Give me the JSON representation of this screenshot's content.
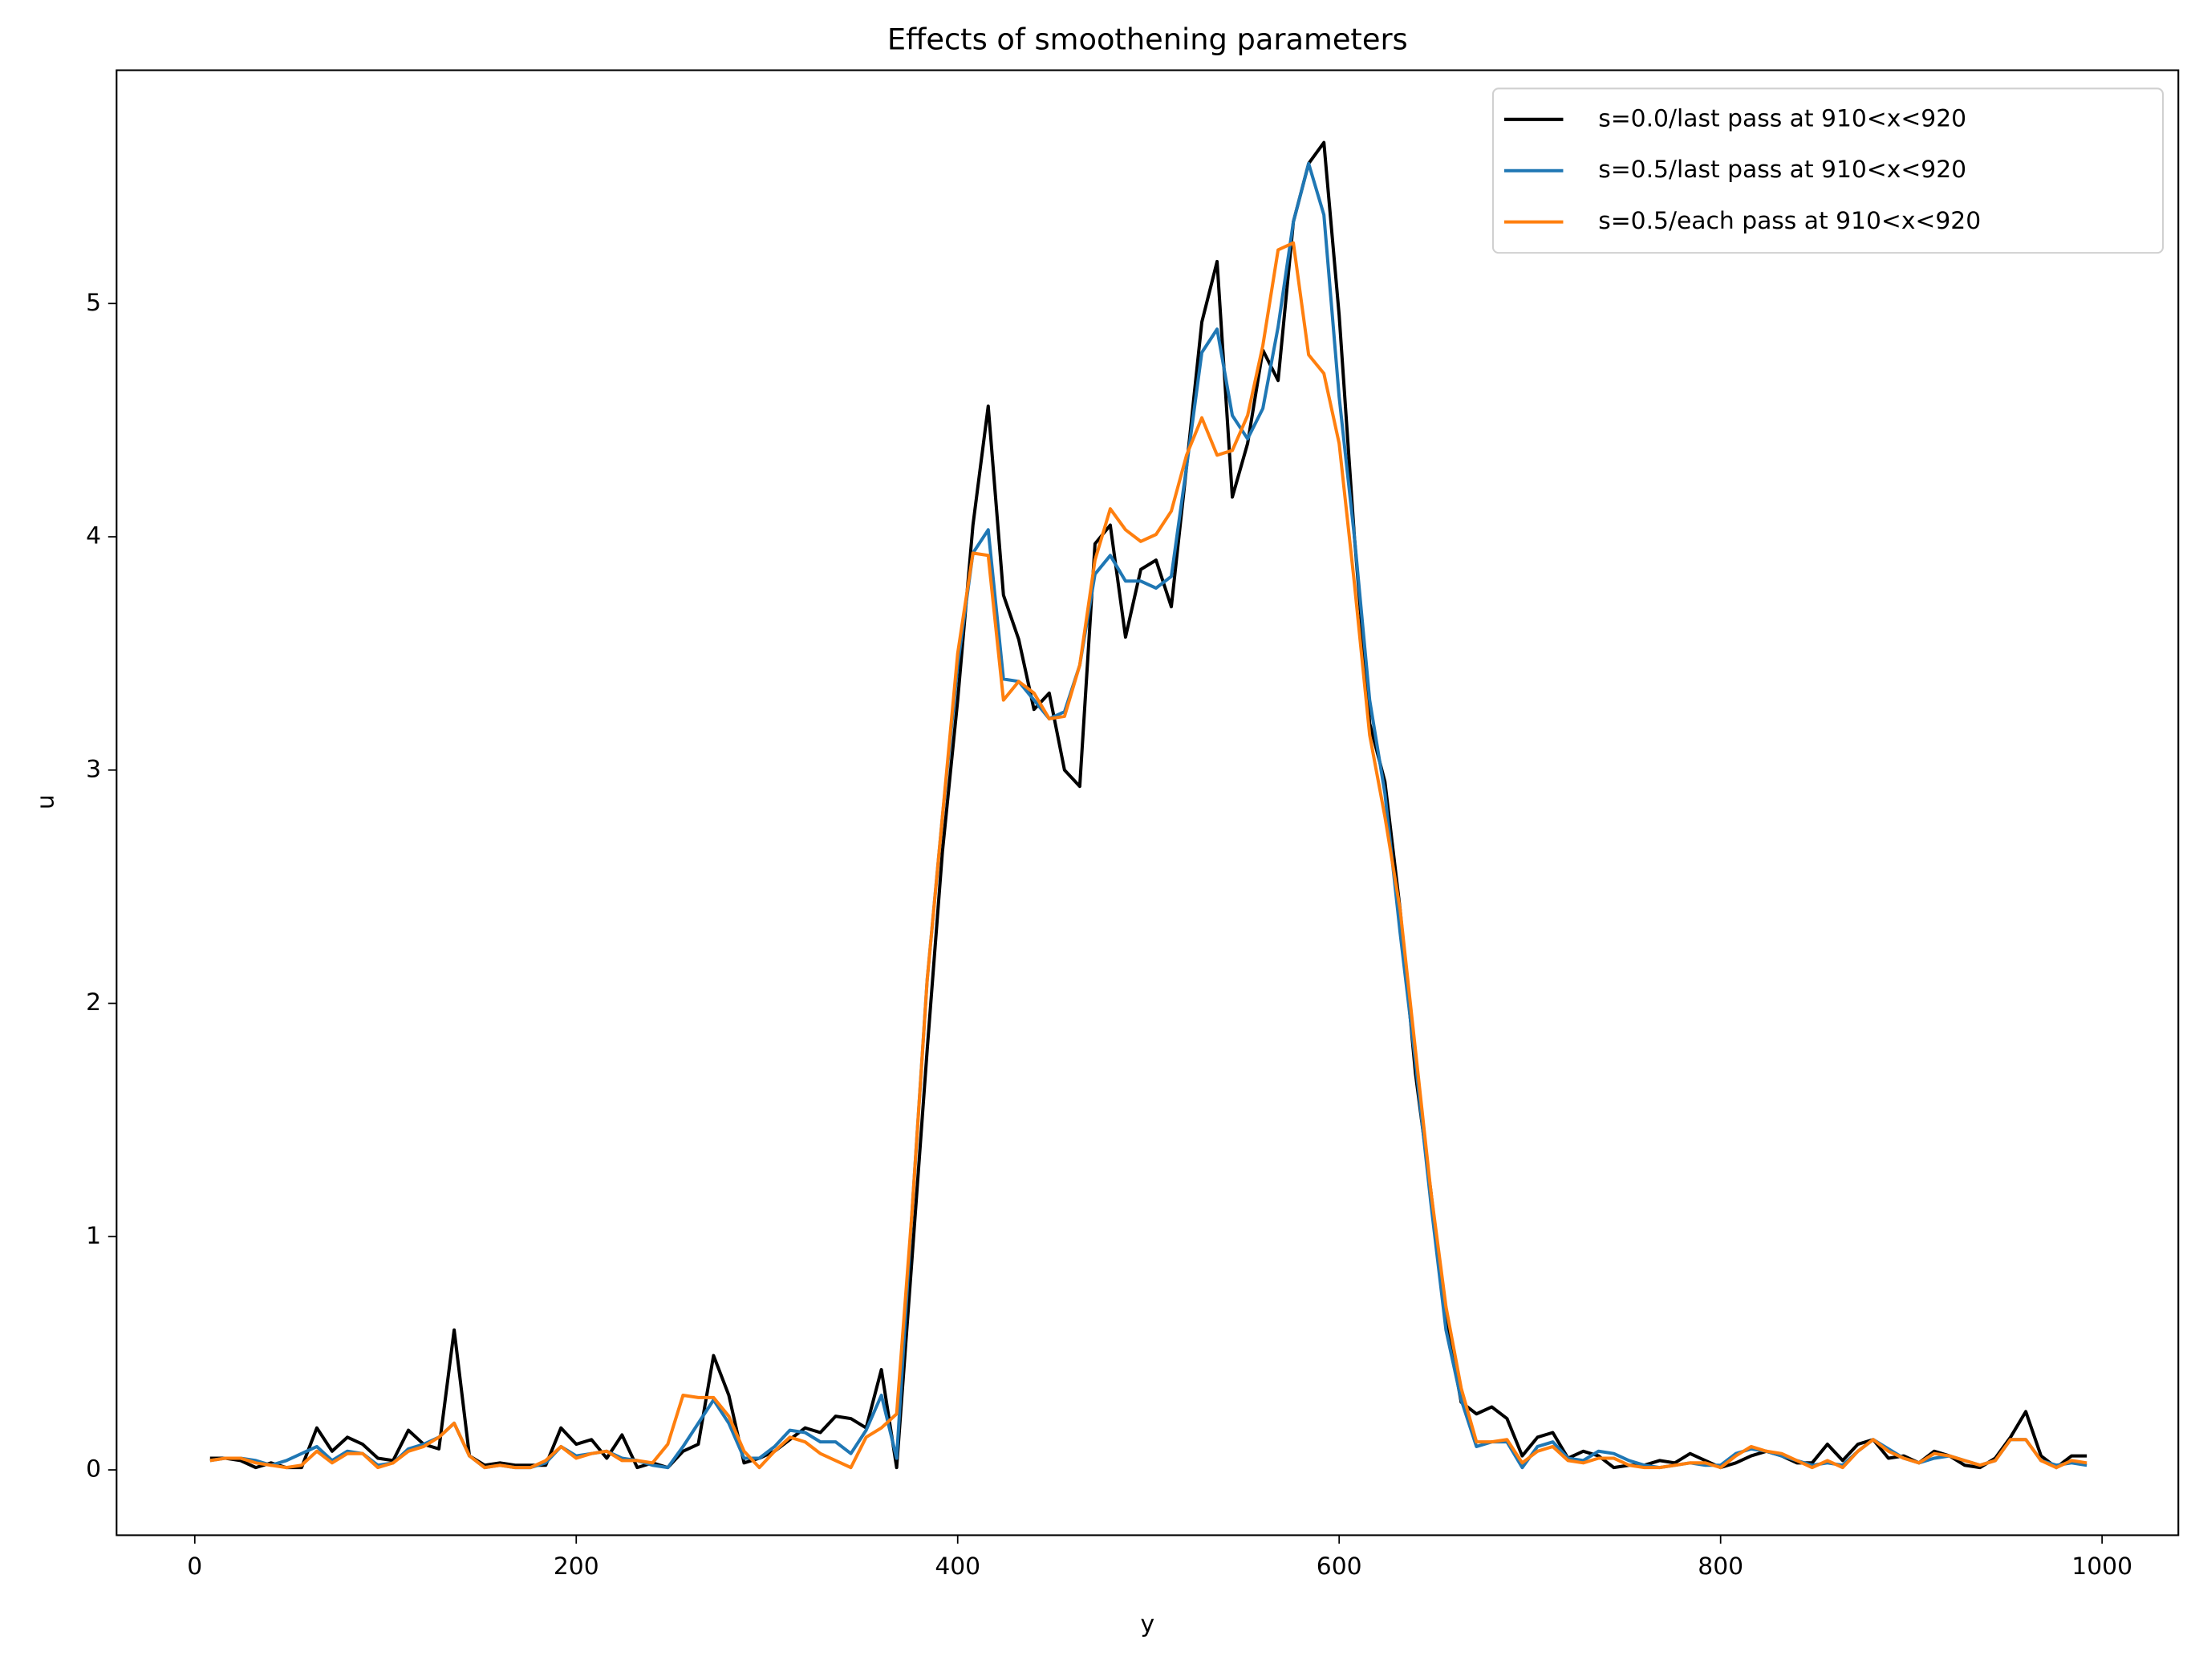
{
  "chart_data": {
    "type": "line",
    "title": "Effects of smoothening parameters",
    "x_label": "y",
    "y_label": "u",
    "x": [
      8,
      16,
      24,
      32,
      40,
      48,
      56,
      64,
      72,
      80,
      88,
      96,
      104,
      112,
      120,
      128,
      136,
      144,
      152,
      160,
      168,
      176,
      184,
      192,
      200,
      208,
      216,
      224,
      232,
      240,
      248,
      256,
      264,
      272,
      280,
      288,
      296,
      304,
      312,
      320,
      328,
      336,
      344,
      352,
      360,
      368,
      376,
      384,
      392,
      400,
      408,
      416,
      424,
      432,
      440,
      448,
      456,
      464,
      472,
      480,
      488,
      496,
      504,
      512,
      520,
      528,
      536,
      544,
      552,
      560,
      568,
      576,
      584,
      592,
      600,
      608,
      616,
      624,
      632,
      640,
      648,
      656,
      664,
      672,
      680,
      688,
      696,
      704,
      712,
      720,
      728,
      736,
      744,
      752,
      760,
      768,
      776,
      784,
      792,
      800,
      808,
      816,
      824,
      832,
      840,
      848,
      856,
      864,
      872,
      880,
      888,
      896,
      904,
      912,
      920,
      928,
      936,
      944,
      952,
      960,
      968,
      976,
      984,
      992
    ],
    "series": [
      {
        "name": "s=0.0/last pass at 910<x<920",
        "color": "#000000",
        "values": [
          0.05,
          0.05,
          0.04,
          0.01,
          0.03,
          0.01,
          0.01,
          0.18,
          0.08,
          0.14,
          0.11,
          0.05,
          0.04,
          0.17,
          0.11,
          0.09,
          0.6,
          0.06,
          0.02,
          0.03,
          0.02,
          0.02,
          0.02,
          0.18,
          0.11,
          0.13,
          0.05,
          0.15,
          0.01,
          0.03,
          0.01,
          0.08,
          0.11,
          0.49,
          0.32,
          0.03,
          0.05,
          0.08,
          0.13,
          0.18,
          0.16,
          0.23,
          0.22,
          0.18,
          0.43,
          0.01,
          0.9,
          1.8,
          2.65,
          3.3,
          4.05,
          4.56,
          3.75,
          3.56,
          3.26,
          3.33,
          3.0,
          2.93,
          3.97,
          4.05,
          3.57,
          3.86,
          3.9,
          3.7,
          4.3,
          4.92,
          5.18,
          4.17,
          4.4,
          4.8,
          4.67,
          5.35,
          5.6,
          5.69,
          4.95,
          4.0,
          3.2,
          2.95,
          2.4,
          1.7,
          1.2,
          0.65,
          0.29,
          0.24,
          0.27,
          0.22,
          0.06,
          0.14,
          0.16,
          0.05,
          0.08,
          0.06,
          0.01,
          0.02,
          0.02,
          0.04,
          0.03,
          0.07,
          0.04,
          0.01,
          0.03,
          0.06,
          0.08,
          0.06,
          0.03,
          0.03,
          0.11,
          0.04,
          0.11,
          0.13,
          0.05,
          0.06,
          0.03,
          0.08,
          0.06,
          0.02,
          0.01,
          0.05,
          0.14,
          0.25,
          0.06,
          0.01,
          0.06,
          0.06
        ]
      },
      {
        "name": "s=0.5/last pass at 910<x<920",
        "color": "#1f77b4",
        "values": [
          0.04,
          0.05,
          0.05,
          0.04,
          0.02,
          0.04,
          0.07,
          0.1,
          0.04,
          0.08,
          0.07,
          0.02,
          0.03,
          0.09,
          0.11,
          0.14,
          0.2,
          0.06,
          0.01,
          0.02,
          0.01,
          0.01,
          0.03,
          0.1,
          0.06,
          0.07,
          0.08,
          0.05,
          0.04,
          0.02,
          0.01,
          0.1,
          0.2,
          0.3,
          0.2,
          0.05,
          0.05,
          0.1,
          0.17,
          0.16,
          0.12,
          0.12,
          0.07,
          0.17,
          0.32,
          0.05,
          1.1,
          2.1,
          2.8,
          3.45,
          3.93,
          4.03,
          3.39,
          3.38,
          3.3,
          3.22,
          3.25,
          3.45,
          3.84,
          3.92,
          3.81,
          3.81,
          3.78,
          3.83,
          4.3,
          4.79,
          4.89,
          4.52,
          4.42,
          4.55,
          4.9,
          5.35,
          5.6,
          5.38,
          4.6,
          4.0,
          3.3,
          2.9,
          2.3,
          1.75,
          1.15,
          0.6,
          0.3,
          0.1,
          0.12,
          0.12,
          0.01,
          0.1,
          0.12,
          0.05,
          0.04,
          0.08,
          0.07,
          0.04,
          0.02,
          0.01,
          0.02,
          0.03,
          0.02,
          0.02,
          0.07,
          0.09,
          0.08,
          0.06,
          0.04,
          0.02,
          0.03,
          0.02,
          0.08,
          0.13,
          0.09,
          0.05,
          0.03,
          0.05,
          0.06,
          0.04,
          0.02,
          0.04,
          0.13,
          0.13,
          0.04,
          0.02,
          0.03,
          0.02
        ]
      },
      {
        "name": "s=0.5/each pass at 910<x<920",
        "color": "#ff7f0e",
        "values": [
          0.04,
          0.05,
          0.05,
          0.03,
          0.02,
          0.01,
          0.02,
          0.08,
          0.03,
          0.07,
          0.07,
          0.01,
          0.03,
          0.08,
          0.1,
          0.14,
          0.2,
          0.06,
          0.01,
          0.02,
          0.01,
          0.01,
          0.04,
          0.1,
          0.05,
          0.07,
          0.08,
          0.04,
          0.04,
          0.03,
          0.11,
          0.32,
          0.31,
          0.31,
          0.23,
          0.08,
          0.01,
          0.08,
          0.14,
          0.12,
          0.07,
          0.04,
          0.01,
          0.14,
          0.18,
          0.24,
          1.1,
          2.1,
          2.8,
          3.5,
          3.93,
          3.92,
          3.3,
          3.38,
          3.33,
          3.22,
          3.23,
          3.45,
          3.9,
          4.12,
          4.03,
          3.98,
          4.01,
          4.11,
          4.35,
          4.51,
          4.35,
          4.37,
          4.52,
          4.82,
          5.23,
          5.26,
          4.78,
          4.7,
          4.4,
          3.8,
          3.15,
          2.8,
          2.4,
          1.8,
          1.2,
          0.7,
          0.35,
          0.12,
          0.12,
          0.13,
          0.03,
          0.08,
          0.1,
          0.04,
          0.03,
          0.05,
          0.05,
          0.02,
          0.01,
          0.01,
          0.02,
          0.03,
          0.03,
          0.01,
          0.06,
          0.1,
          0.08,
          0.07,
          0.04,
          0.01,
          0.04,
          0.01,
          0.08,
          0.13,
          0.08,
          0.05,
          0.03,
          0.07,
          0.06,
          0.04,
          0.02,
          0.04,
          0.13,
          0.13,
          0.04,
          0.01,
          0.04,
          0.03
        ]
      }
    ],
    "xlim": [
      -41,
      1040
    ],
    "ylim": [
      -0.28,
      6.0
    ],
    "xticks": [
      0,
      200,
      400,
      600,
      800,
      1000
    ],
    "yticks": [
      0,
      1,
      2,
      3,
      4,
      5
    ],
    "legend": "upper right",
    "grid": false
  }
}
